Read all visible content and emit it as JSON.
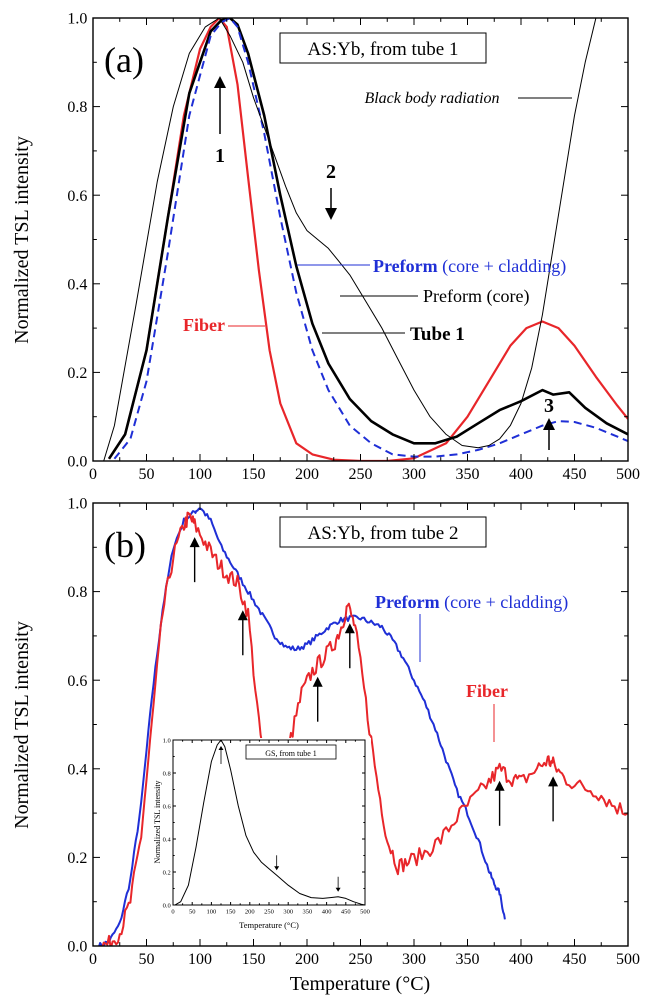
{
  "chart_data": [
    {
      "type": "line",
      "panel_label": "(a)",
      "title_box": "AS:Yb, from tube 1",
      "xlabel": "",
      "ylabel": "Normalized TSL intensity",
      "xlim": [
        0,
        500
      ],
      "ylim": [
        0,
        1.0
      ],
      "xticks": [
        0,
        50,
        100,
        150,
        200,
        250,
        300,
        350,
        400,
        450,
        500
      ],
      "yticks": [
        0.0,
        0.2,
        0.4,
        0.6,
        0.8,
        1.0
      ],
      "grid": false,
      "colors": {
        "fiber": "#e8262a",
        "tube": "#000000",
        "preform_full": "#1f2fd6",
        "preform_core": "#000000"
      },
      "series": [
        {
          "key": "fiber",
          "name": "Fiber",
          "x": [
            15,
            30,
            50,
            70,
            85,
            100,
            110,
            118,
            125,
            135,
            145,
            155,
            165,
            175,
            190,
            205,
            225,
            250,
            275,
            300,
            330,
            350,
            370,
            390,
            405,
            420,
            435,
            450,
            470,
            490,
            500
          ],
          "y": [
            0.005,
            0.06,
            0.25,
            0.55,
            0.78,
            0.93,
            0.98,
            1.0,
            0.98,
            0.85,
            0.64,
            0.43,
            0.25,
            0.13,
            0.04,
            0.015,
            0.003,
            0.0,
            0.0,
            0.006,
            0.04,
            0.1,
            0.18,
            0.26,
            0.3,
            0.315,
            0.3,
            0.26,
            0.19,
            0.125,
            0.095
          ]
        },
        {
          "key": "tube",
          "name": "Tube 1",
          "x": [
            15,
            30,
            50,
            70,
            90,
            110,
            120,
            128,
            135,
            145,
            160,
            175,
            190,
            205,
            220,
            240,
            260,
            280,
            300,
            320,
            340,
            360,
            380,
            400,
            420,
            430,
            445,
            460,
            480,
            500
          ],
          "y": [
            0.005,
            0.06,
            0.25,
            0.55,
            0.83,
            0.97,
            0.995,
            1.0,
            0.985,
            0.92,
            0.78,
            0.6,
            0.44,
            0.31,
            0.22,
            0.14,
            0.09,
            0.06,
            0.04,
            0.04,
            0.055,
            0.085,
            0.115,
            0.135,
            0.16,
            0.15,
            0.155,
            0.12,
            0.085,
            0.06
          ]
        },
        {
          "key": "preform_full",
          "name": "Preform",
          "x": [
            20,
            35,
            50,
            70,
            90,
            110,
            120,
            128,
            135,
            145,
            160,
            175,
            190,
            205,
            220,
            240,
            260,
            280,
            300,
            320,
            340,
            360,
            380,
            400,
            420,
            435,
            450,
            470,
            490,
            500
          ],
          "y": [
            0.005,
            0.05,
            0.18,
            0.47,
            0.78,
            0.96,
            0.99,
            1.0,
            0.98,
            0.9,
            0.74,
            0.55,
            0.38,
            0.25,
            0.16,
            0.08,
            0.04,
            0.015,
            0.01,
            0.01,
            0.015,
            0.025,
            0.04,
            0.06,
            0.08,
            0.09,
            0.088,
            0.075,
            0.055,
            0.045
          ]
        },
        {
          "key": "preform_core",
          "name": "Preform (core)",
          "x": [
            10,
            20,
            40,
            60,
            75,
            90,
            105,
            118,
            128,
            140,
            150,
            165,
            180,
            190,
            200,
            210,
            220,
            230,
            240,
            255,
            270,
            285,
            300,
            315,
            330,
            345,
            360,
            370,
            380,
            390,
            400,
            410,
            420,
            430,
            440,
            450,
            460,
            470
          ],
          "y": [
            0.0,
            0.08,
            0.35,
            0.63,
            0.8,
            0.92,
            0.98,
            1.0,
            0.96,
            0.9,
            0.82,
            0.72,
            0.62,
            0.56,
            0.52,
            0.5,
            0.48,
            0.45,
            0.42,
            0.36,
            0.3,
            0.23,
            0.16,
            0.1,
            0.06,
            0.035,
            0.03,
            0.035,
            0.05,
            0.08,
            0.13,
            0.21,
            0.33,
            0.48,
            0.63,
            0.78,
            0.9,
            1.0
          ]
        }
      ],
      "annotations": [
        {
          "text": "1",
          "x": 125,
          "y": 0.97,
          "arrow": "up"
        },
        {
          "text": "2",
          "x": 225,
          "y": 0.56,
          "arrow": "down"
        },
        {
          "text": "3",
          "x": 430,
          "y": 0.08,
          "arrow": "up"
        },
        {
          "text": "Black body radiation"
        },
        {
          "text": "Preform",
          "suffix": " (core + cladding)"
        },
        {
          "text": "Preform (core)"
        },
        {
          "text": "Tube 1"
        },
        {
          "text": "Fiber"
        }
      ]
    },
    {
      "type": "line",
      "panel_label": "(b)",
      "title_box": "AS:Yb, from tube 2",
      "xlabel": "Temperature (°C)",
      "ylabel": "Normalized TSL intensity",
      "xlim": [
        0,
        500
      ],
      "ylim": [
        0,
        1.0
      ],
      "xticks": [
        0,
        50,
        100,
        150,
        200,
        250,
        300,
        350,
        400,
        450,
        500
      ],
      "yticks": [
        0.0,
        0.2,
        0.4,
        0.6,
        0.8,
        1.0
      ],
      "grid": false,
      "series": [
        {
          "key": "preform_b",
          "name": "Preform",
          "x": [
            5,
            15,
            25,
            35,
            45,
            55,
            65,
            75,
            85,
            95,
            100,
            110,
            120,
            130,
            140,
            150,
            160,
            170,
            180,
            190,
            200,
            210,
            220,
            230,
            240,
            250,
            260,
            270,
            280,
            290,
            300,
            310,
            320,
            330,
            340,
            350,
            360,
            370,
            375,
            380,
            385
          ],
          "y": [
            0.0,
            0.01,
            0.05,
            0.15,
            0.32,
            0.56,
            0.76,
            0.9,
            0.96,
            0.98,
            0.99,
            0.96,
            0.9,
            0.86,
            0.82,
            0.78,
            0.74,
            0.7,
            0.675,
            0.67,
            0.68,
            0.7,
            0.72,
            0.735,
            0.74,
            0.74,
            0.73,
            0.72,
            0.69,
            0.65,
            0.6,
            0.55,
            0.49,
            0.42,
            0.35,
            0.3,
            0.24,
            0.17,
            0.14,
            0.12,
            0.06
          ]
        },
        {
          "key": "fiber_b",
          "name": "Fiber",
          "x": [
            5,
            15,
            25,
            35,
            45,
            55,
            65,
            75,
            85,
            90,
            95,
            105,
            115,
            125,
            135,
            145,
            155,
            165,
            170,
            175,
            185,
            195,
            205,
            215,
            225,
            232,
            238,
            245,
            255,
            265,
            275,
            285,
            295,
            310,
            325,
            340,
            355,
            370,
            380,
            390,
            400,
            415,
            425,
            430,
            440,
            455,
            470,
            485,
            500
          ],
          "y": [
            0.0,
            0.005,
            0.03,
            0.1,
            0.25,
            0.5,
            0.75,
            0.88,
            0.95,
            0.97,
            0.95,
            0.91,
            0.87,
            0.84,
            0.82,
            0.75,
            0.5,
            0.35,
            0.3,
            0.35,
            0.47,
            0.57,
            0.62,
            0.65,
            0.68,
            0.72,
            0.77,
            0.72,
            0.55,
            0.38,
            0.24,
            0.18,
            0.19,
            0.21,
            0.24,
            0.29,
            0.33,
            0.37,
            0.4,
            0.38,
            0.37,
            0.4,
            0.42,
            0.41,
            0.38,
            0.36,
            0.35,
            0.32,
            0.3
          ]
        }
      ],
      "annotations": [
        {
          "text": "Preform",
          "suffix": " (core + cladding)"
        },
        {
          "text": "Fiber"
        }
      ],
      "arrows_up_at_x": [
        95,
        140,
        210,
        240,
        380,
        430
      ]
    },
    {
      "type": "line",
      "role": "inset",
      "title_box": "GS, from tube 1",
      "xlabel": "Temperature (°C)",
      "ylabel": "Normalized TSL intensity",
      "xlim": [
        0,
        500
      ],
      "ylim": [
        0,
        1.0
      ],
      "xticks": [
        0,
        50,
        100,
        150,
        200,
        250,
        300,
        350,
        400,
        450,
        500
      ],
      "yticks": [
        0.0,
        0.2,
        0.4,
        0.6,
        0.8,
        1.0
      ],
      "series": [
        {
          "key": "inset",
          "x": [
            5,
            20,
            40,
            60,
            80,
            100,
            115,
            125,
            135,
            150,
            170,
            190,
            210,
            230,
            250,
            270,
            300,
            330,
            360,
            390,
            410,
            430,
            450,
            470,
            490,
            500
          ],
          "y": [
            0.0,
            0.02,
            0.12,
            0.35,
            0.62,
            0.87,
            0.97,
            1.0,
            0.96,
            0.82,
            0.6,
            0.42,
            0.32,
            0.26,
            0.22,
            0.18,
            0.12,
            0.07,
            0.045,
            0.04,
            0.045,
            0.05,
            0.04,
            0.02,
            0.005,
            0.0
          ]
        }
      ],
      "arrows_down_at_x": [
        125,
        270,
        430
      ]
    }
  ]
}
